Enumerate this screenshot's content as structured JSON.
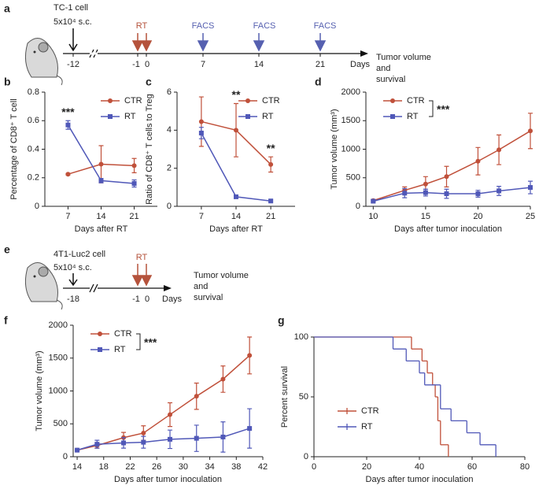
{
  "chart_data": [
    {
      "panel": "b",
      "type": "line",
      "ylabel": "Percentage of CD8⁺ T cell",
      "xlabel": "Days after RT",
      "categories": [
        7,
        14,
        21
      ],
      "ylim": [
        0,
        0.8
      ],
      "yticks": [
        0,
        0.2,
        0.4,
        0.6,
        0.8
      ],
      "legend": "upper right",
      "series": [
        {
          "name": "CTR",
          "color": "#c0503a",
          "marker": "circle",
          "values": [
            0.225,
            0.295,
            0.285
          ],
          "errors": [
            0.005,
            0.13,
            0.05
          ]
        },
        {
          "name": "RT",
          "color": "#5058b8",
          "marker": "square",
          "values": [
            0.57,
            0.18,
            0.16
          ],
          "errors": [
            0.03,
            0.015,
            0.025
          ]
        }
      ],
      "annotations": [
        {
          "text": "***",
          "category": 7
        }
      ]
    },
    {
      "panel": "c",
      "type": "line",
      "ylabel": "Ratio of CD8⁺ T cells to Treg",
      "xlabel": "Days after RT",
      "categories": [
        7,
        14,
        21
      ],
      "ylim": [
        0,
        6
      ],
      "yticks": [
        0,
        2,
        4,
        6
      ],
      "legend": "upper right",
      "series": [
        {
          "name": "CTR",
          "color": "#c0503a",
          "marker": "circle",
          "values": [
            4.45,
            4.0,
            2.2
          ],
          "errors": [
            1.3,
            1.4,
            0.4
          ]
        },
        {
          "name": "RT",
          "color": "#5058b8",
          "marker": "square",
          "values": [
            3.85,
            0.5,
            0.28
          ],
          "errors": [
            0.3,
            0.05,
            0.05
          ]
        }
      ],
      "annotations": [
        {
          "text": "**",
          "category": 14
        },
        {
          "text": "**",
          "category": 21
        }
      ]
    },
    {
      "panel": "d",
      "type": "line",
      "ylabel": "Tumor volume (mm³)",
      "xlabel": "Days after tumor inoculation",
      "x": [
        10,
        13,
        15,
        17,
        20,
        22,
        25
      ],
      "xlim": [
        9.3,
        25
      ],
      "xticks": [
        10,
        15,
        20,
        25
      ],
      "ylim": [
        0,
        2000
      ],
      "yticks": [
        0,
        500,
        1000,
        1500,
        2000
      ],
      "legend": "upper left",
      "legend_annotation": "***",
      "series": [
        {
          "name": "CTR",
          "color": "#c0503a",
          "marker": "circle",
          "values": [
            100,
            280,
            390,
            520,
            790,
            990,
            1320
          ],
          "errors": [
            20,
            60,
            130,
            180,
            240,
            260,
            310
          ]
        },
        {
          "name": "RT",
          "color": "#5058b8",
          "marker": "square",
          "values": [
            90,
            230,
            240,
            220,
            220,
            270,
            330
          ],
          "errors": [
            20,
            80,
            60,
            80,
            60,
            80,
            110
          ]
        }
      ]
    },
    {
      "panel": "f",
      "type": "line",
      "ylabel": "Tumor volume (mm³)",
      "xlabel": "Days after tumor inoculation",
      "x": [
        14,
        17,
        21,
        24,
        28,
        32,
        36,
        40
      ],
      "xlim": [
        13.4,
        42
      ],
      "xticks": [
        14,
        18,
        22,
        26,
        30,
        34,
        38,
        42
      ],
      "ylim": [
        0,
        2000
      ],
      "yticks": [
        0,
        500,
        1000,
        1500,
        2000
      ],
      "legend": "upper left",
      "legend_annotation": "***",
      "series": [
        {
          "name": "CTR",
          "color": "#c0503a",
          "marker": "circle",
          "values": [
            100,
            170,
            290,
            360,
            640,
            920,
            1180,
            1540
          ],
          "errors": [
            10,
            40,
            80,
            110,
            180,
            200,
            200,
            280
          ]
        },
        {
          "name": "RT",
          "color": "#5058b8",
          "marker": "square",
          "values": [
            100,
            190,
            210,
            220,
            265,
            280,
            300,
            430
          ],
          "errors": [
            10,
            60,
            80,
            90,
            140,
            200,
            230,
            300
          ]
        }
      ]
    },
    {
      "panel": "g",
      "type": "step",
      "ylabel": "Percent survival",
      "xlabel": "Days after tumor inoculation",
      "xlim": [
        0,
        80
      ],
      "xticks": [
        0,
        20,
        40,
        60,
        80
      ],
      "ylim": [
        0,
        100
      ],
      "yticks": [
        0,
        50,
        100
      ],
      "legend": "lower left",
      "series": [
        {
          "name": "CTR",
          "color": "#c0503a",
          "x": [
            0,
            37,
            41,
            43,
            45,
            46,
            47,
            48,
            51
          ],
          "values": [
            100,
            90,
            80,
            70,
            60,
            50,
            30,
            10,
            0
          ]
        },
        {
          "name": "RT",
          "color": "#5058b8",
          "x": [
            0,
            30,
            35,
            40,
            42,
            48,
            52,
            58,
            63,
            69
          ],
          "values": [
            100,
            90,
            80,
            70,
            60,
            40,
            30,
            20,
            10,
            0
          ]
        }
      ]
    }
  ],
  "timelines": [
    {
      "panel": "a",
      "cell": "TC-1  cell",
      "dose": "5x10⁴ s.c.",
      "ticks": [
        "-12",
        "-1",
        "0",
        "7",
        "14",
        "21"
      ],
      "events": [
        "RT",
        "FACS",
        "FACS",
        "FACS"
      ],
      "unit": "Days",
      "outcome": [
        "Tumor volume",
        "and",
        "survival"
      ]
    },
    {
      "panel": "e",
      "cell": "4T1-Luc2  cell",
      "dose": "5x10⁴ s.c.",
      "ticks": [
        "-18",
        "-1",
        "0"
      ],
      "events": [
        "RT"
      ],
      "unit": "Days",
      "outcome": [
        "Tumor volume",
        "and",
        "survival"
      ]
    }
  ]
}
